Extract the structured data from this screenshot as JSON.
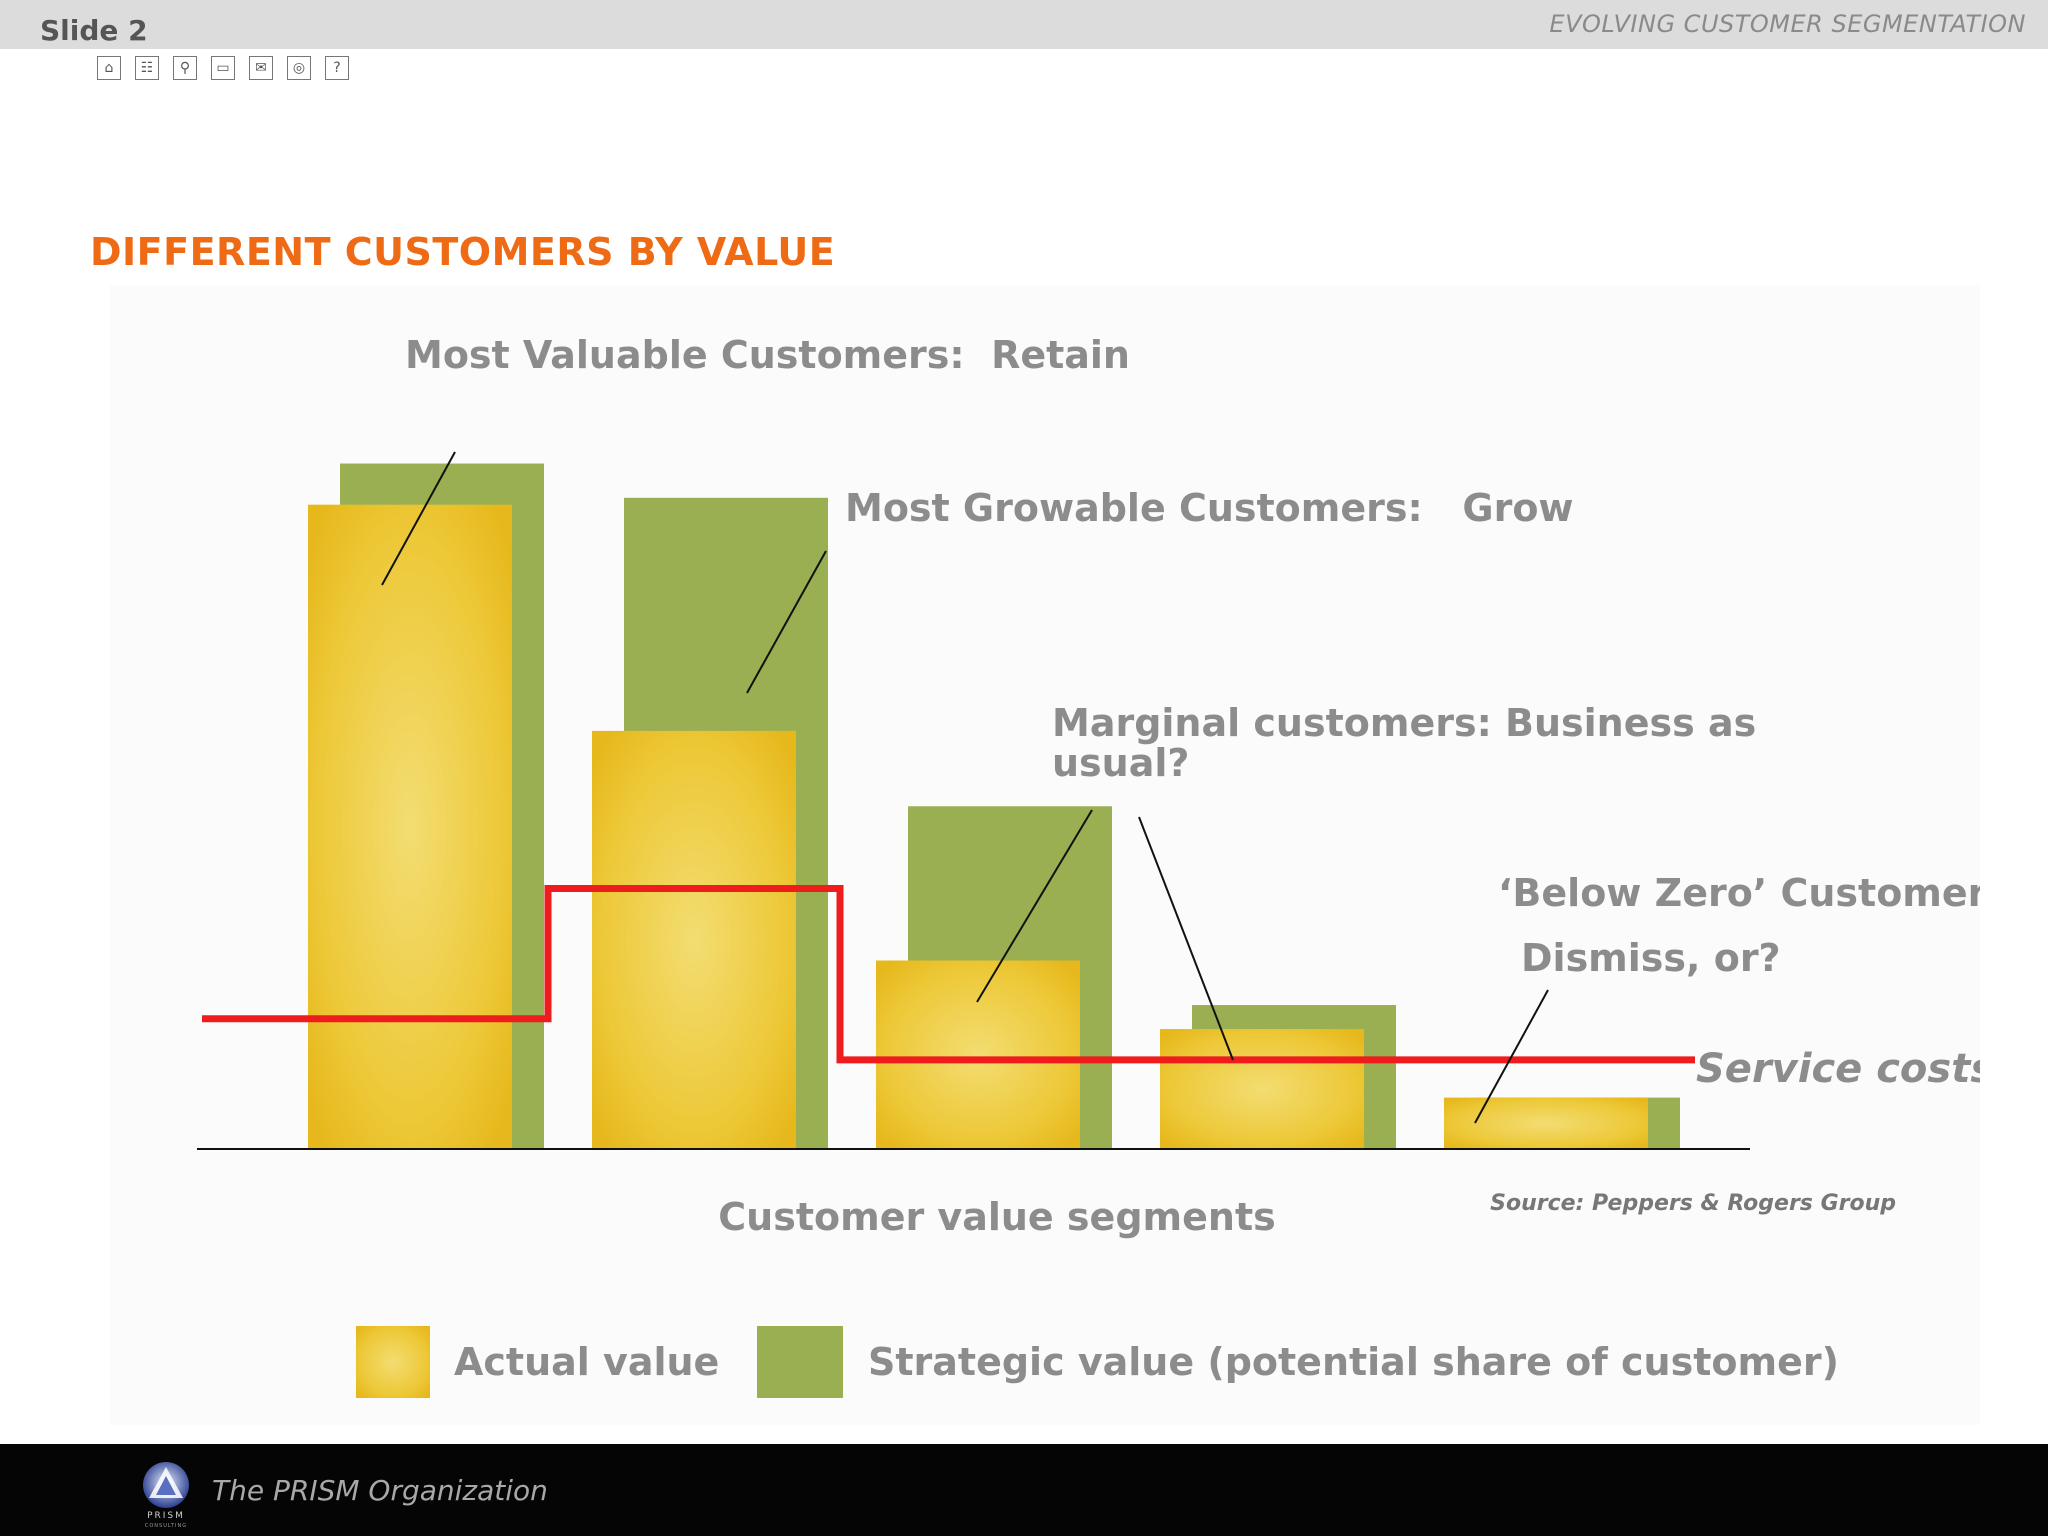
{
  "header": {
    "slide_label": "Slide 2",
    "section_title": "EVOLVING CUSTOMER SEGMENTATION"
  },
  "nav_icons": [
    "home-icon",
    "sitemap-icon",
    "search-icon",
    "folder-icon",
    "mail-icon",
    "globe-icon",
    "help-icon"
  ],
  "heading": "DIFFERENT CUSTOMERS BY VALUE",
  "footer": {
    "organization": "The PRISM Organization",
    "logo_text": "PRISM",
    "logo_subtext": "CONSULTING"
  },
  "colors": {
    "heading": "#ee6a14",
    "actual_value": "#ecc22a",
    "strategic_value": "#9aae52",
    "service_costs": "#ee1c1c",
    "label_gray": "#8c8c8c"
  },
  "chart_data": {
    "type": "bar",
    "categories": [
      "Most Valuable Customers",
      "Most Growable Customers",
      "Marginal customers",
      "Below Zero Customers",
      ""
    ],
    "series": [
      {
        "name": "Strategic value (potential share of customer)",
        "values": [
          100,
          95,
          50,
          21,
          7.5
        ]
      },
      {
        "name": "Actual value",
        "values": [
          94,
          61,
          27.5,
          17.5,
          7.5
        ]
      }
    ],
    "service_costs": {
      "name": "Service costs",
      "values": [
        19,
        38,
        13,
        13,
        13
      ]
    },
    "ylim": [
      0,
      110
    ],
    "xlabel": "Customer value segments",
    "ylabel": "",
    "source": "Source: Peppers & Rogers Group",
    "annotations": [
      {
        "text": "Most Valuable Customers:  Retain"
      },
      {
        "text": "Most Growable Customers:   Grow"
      },
      {
        "text": "Marginal customers: Business as usual?"
      },
      {
        "text": "‘Below Zero’ Customers:"
      },
      {
        "text": "Dismiss, or?"
      }
    ],
    "legend": [
      "Actual value",
      "Strategic value (potential share of customer)"
    ],
    "legend_position": "bottom",
    "grid": false
  }
}
